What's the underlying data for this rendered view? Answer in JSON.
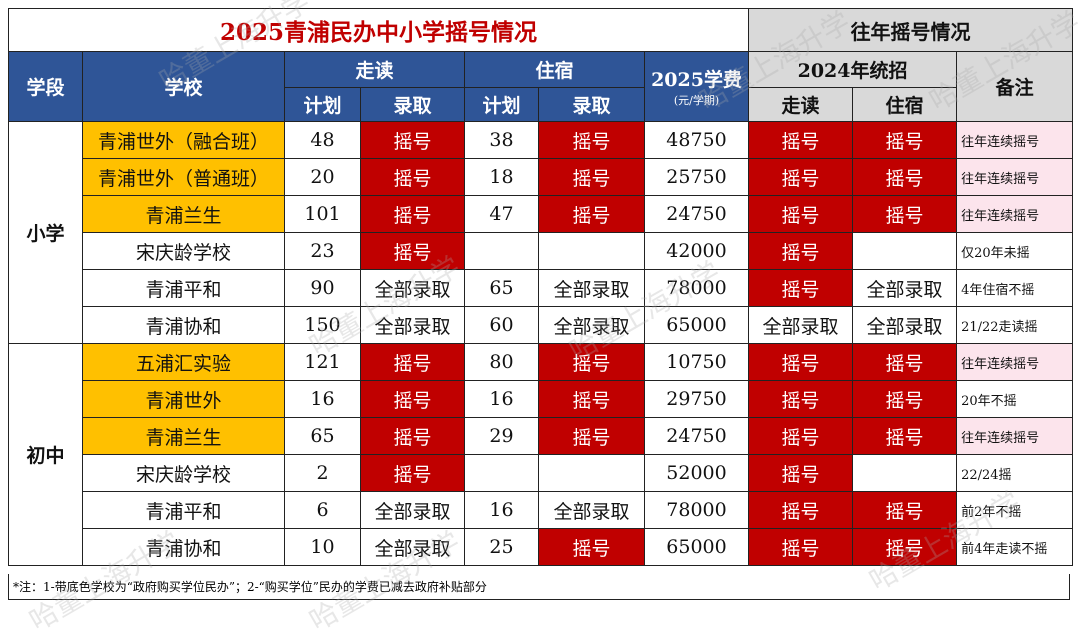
{
  "title": "2025青浦民办中小学摇号情况",
  "history_title": "往年摇号情况",
  "headers": {
    "stage": "学段",
    "school": "学校",
    "commute": "走读",
    "boarding": "住宿",
    "plan": "计划",
    "admit": "录取",
    "fee": "2025学费",
    "fee_unit": "(元/学期)",
    "hist_2024": "2024年统招",
    "hist_commute": "走读",
    "hist_boarding": "住宿",
    "remarks": "备注"
  },
  "stages": {
    "primary": "小学",
    "middle": "初中"
  },
  "rows": [
    {
      "school": "青浦世外（融合班）",
      "c_plan": "48",
      "c_admit": "摇号",
      "b_plan": "38",
      "b_admit": "摇号",
      "fee": "48750",
      "h_c": "摇号",
      "h_b": "摇号",
      "note": "往年连续摇号"
    },
    {
      "school": "青浦世外（普通班）",
      "c_plan": "20",
      "c_admit": "摇号",
      "b_plan": "18",
      "b_admit": "摇号",
      "fee": "25750",
      "h_c": "摇号",
      "h_b": "摇号",
      "note": "往年连续摇号"
    },
    {
      "school": "青浦兰生",
      "c_plan": "101",
      "c_admit": "摇号",
      "b_plan": "47",
      "b_admit": "摇号",
      "fee": "24750",
      "h_c": "摇号",
      "h_b": "摇号",
      "note": "往年连续摇号"
    },
    {
      "school": "宋庆龄学校",
      "c_plan": "23",
      "c_admit": "摇号",
      "b_plan": "",
      "b_admit": "",
      "fee": "42000",
      "h_c": "摇号",
      "h_b": "",
      "note": "仅20年未摇"
    },
    {
      "school": "青浦平和",
      "c_plan": "90",
      "c_admit": "全部录取",
      "b_plan": "65",
      "b_admit": "全部录取",
      "fee": "78000",
      "h_c": "摇号",
      "h_b": "全部录取",
      "note": "4年住宿不摇"
    },
    {
      "school": "青浦协和",
      "c_plan": "150",
      "c_admit": "全部录取",
      "b_plan": "60",
      "b_admit": "全部录取",
      "fee": "65000",
      "h_c": "全部录取",
      "h_b": "全部录取",
      "note": "21/22走读摇"
    },
    {
      "school": "五浦汇实验",
      "c_plan": "121",
      "c_admit": "摇号",
      "b_plan": "80",
      "b_admit": "摇号",
      "fee": "10750",
      "h_c": "摇号",
      "h_b": "摇号",
      "note": "往年连续摇号"
    },
    {
      "school": "青浦世外",
      "c_plan": "16",
      "c_admit": "摇号",
      "b_plan": "16",
      "b_admit": "摇号",
      "fee": "29750",
      "h_c": "摇号",
      "h_b": "摇号",
      "note": "20年不摇"
    },
    {
      "school": "青浦兰生",
      "c_plan": "65",
      "c_admit": "摇号",
      "b_plan": "29",
      "b_admit": "摇号",
      "fee": "24750",
      "h_c": "摇号",
      "h_b": "摇号",
      "note": "往年连续摇号"
    },
    {
      "school": "宋庆龄学校",
      "c_plan": "2",
      "c_admit": "摇号",
      "b_plan": "",
      "b_admit": "",
      "fee": "52000",
      "h_c": "摇号",
      "h_b": "",
      "note": "22/24摇"
    },
    {
      "school": "青浦平和",
      "c_plan": "6",
      "c_admit": "全部录取",
      "b_plan": "16",
      "b_admit": "全部录取",
      "fee": "78000",
      "h_c": "摇号",
      "h_b": "摇号",
      "note": "前2年不摇"
    },
    {
      "school": "青浦协和",
      "c_plan": "10",
      "c_admit": "全部录取",
      "b_plan": "25",
      "b_admit": "摇号",
      "fee": "65000",
      "h_c": "摇号",
      "h_b": "摇号",
      "note": "前4年走读不摇"
    }
  ],
  "footnote": "*注：1-带底色学校为“政府购买学位民办”；2-“购买学位”民办的学费已减去政府补贴部分",
  "watermark": "哈董上海升学",
  "colors": {
    "header_blue": "#2f5597",
    "lottery_red": "#c00000",
    "bought_orange": "#ffc000",
    "note_pink": "#fce4ec",
    "title_red": "#c00000",
    "hist_gray": "#d9d9d9"
  }
}
